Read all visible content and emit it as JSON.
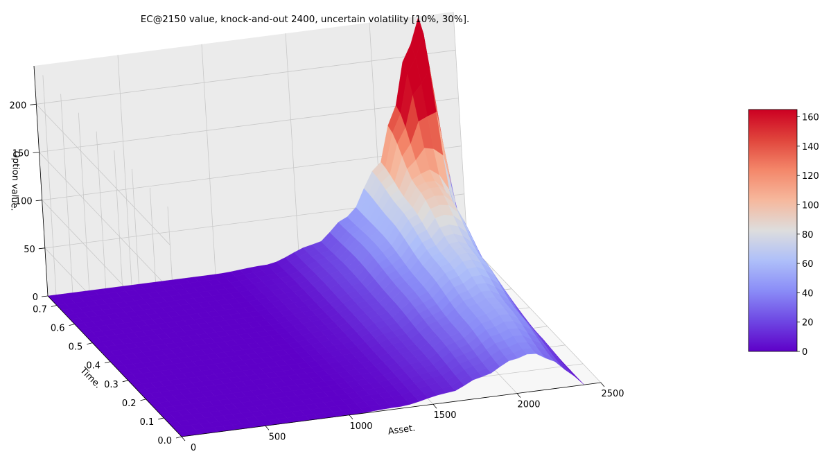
{
  "chart_data": {
    "type": "surface",
    "title": "EC@2150 value, knock-and-out 2400, uncertain volatility [10%, 30%].",
    "xlabel": "Asset.",
    "ylabel": "Time.",
    "zlabel": "Option value.",
    "xlim": [
      0,
      2500
    ],
    "ylim": [
      0,
      0.75
    ],
    "zlim": [
      0,
      240
    ],
    "x_ticks": [
      "0",
      "500",
      "1000",
      "1500",
      "2000",
      "2500"
    ],
    "y_ticks": [
      "0.0",
      "0.1",
      "0.2",
      "0.3",
      "0.4",
      "0.5",
      "0.6",
      "0.7"
    ],
    "z_ticks": [
      "0",
      "50",
      "100",
      "150",
      "200"
    ],
    "colormap": "coolwarm",
    "colorbar": {
      "min": 0,
      "max": 165,
      "ticks": [
        "0",
        "20",
        "40",
        "60",
        "80",
        "100",
        "120",
        "140",
        "160"
      ],
      "colors": [
        "#5e00c8",
        "#6e47e3",
        "#8a8cf7",
        "#aebff9",
        "#dddddd",
        "#f6b89d",
        "#f4876a",
        "#e0453c",
        "#cc0022"
      ]
    },
    "surface_samples": {
      "asset": [
        0,
        500,
        1000,
        1300,
        1600,
        1800,
        2000,
        2100,
        2200,
        2300,
        2400
      ],
      "time_0.0": [
        0,
        0,
        0,
        2,
        10,
        22,
        36,
        40,
        32,
        18,
        0
      ],
      "time_0.2": [
        0,
        0,
        0,
        3,
        14,
        30,
        48,
        54,
        46,
        26,
        0
      ],
      "time_0.4": [
        0,
        0,
        0,
        4,
        18,
        38,
        62,
        72,
        66,
        40,
        0
      ],
      "time_0.6": [
        0,
        0,
        0,
        4,
        20,
        45,
        80,
        100,
        100,
        70,
        0
      ],
      "time_0.75": [
        0,
        0,
        0,
        3,
        18,
        42,
        90,
        140,
        200,
        240,
        0
      ]
    },
    "grid": true
  }
}
